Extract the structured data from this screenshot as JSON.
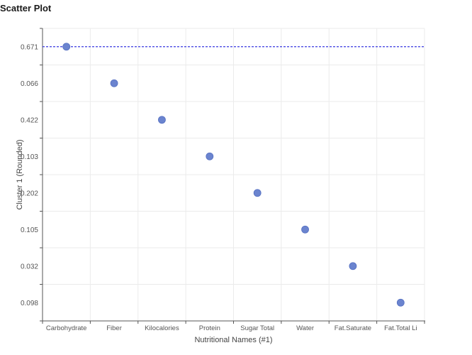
{
  "page": {
    "title": "Scatter Plot"
  },
  "chart_data": {
    "type": "scatter",
    "title": "Scatter Plot",
    "xlabel": "Nutritional Names (#1)",
    "ylabel": "Cluster 1 (Rounded)",
    "categories": [
      "Carbohydrate",
      "Fiber",
      "Kilocalories",
      "Protein",
      "Sugar Total",
      "Water",
      "Fat.Saturate",
      "Fat.Total Li"
    ],
    "y_categories": [
      "0.671",
      "0.066",
      "0.422",
      "0.103",
      "0.202",
      "0.105",
      "0.032",
      "0.098"
    ],
    "points": [
      {
        "x": "Carbohydrate",
        "y": "0.671"
      },
      {
        "x": "Fiber",
        "y": "0.066"
      },
      {
        "x": "Kilocalories",
        "y": "0.422"
      },
      {
        "x": "Protein",
        "y": "0.103"
      },
      {
        "x": "Sugar Total",
        "y": "0.202"
      },
      {
        "x": "Water",
        "y": "0.105"
      },
      {
        "x": "Fat.Saturate",
        "y": "0.032"
      },
      {
        "x": "Fat.Total Li",
        "y": "0.098"
      }
    ],
    "reference_line": {
      "y": "0.671",
      "style": "dashed"
    },
    "colors": {
      "point": "#6b84cf",
      "point_stroke": "#5570c2",
      "reference_line": "#3a3ae0",
      "grid": "#ebebeb",
      "axis": "#555555"
    },
    "grid": true,
    "legend": "none"
  }
}
